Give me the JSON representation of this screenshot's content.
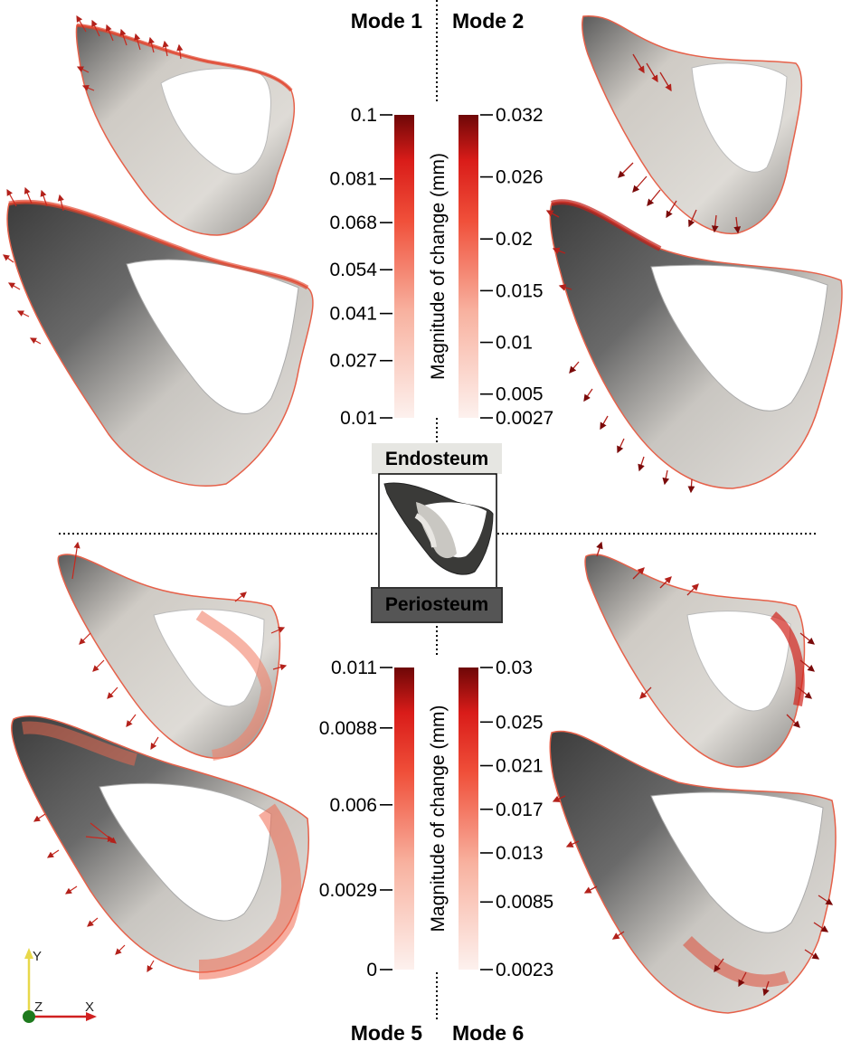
{
  "modes": {
    "top_left": "Mode 1",
    "top_right": "Mode 2",
    "bottom_left": "Mode 5",
    "bottom_right": "Mode 6"
  },
  "legend": {
    "endosteum": "Endosteum",
    "periosteum": "Periosteum"
  },
  "axes_triad": {
    "y": "Y",
    "z": "Z",
    "x": "X"
  },
  "colorbars": [
    {
      "id": "mode1",
      "title": "Magnitude of change (mm)",
      "range": [
        0.01,
        0.1
      ],
      "ticks": [
        "0.1",
        "0.081",
        "0.068",
        "0.054",
        "0.041",
        "0.027",
        "0.01"
      ],
      "tick_values": [
        0.1,
        0.081,
        0.068,
        0.054,
        0.041,
        0.027,
        0.01
      ]
    },
    {
      "id": "mode2",
      "title": "",
      "range": [
        0.0027,
        0.032
      ],
      "ticks": [
        "0.032",
        "0.026",
        "0.02",
        "0.015",
        "0.01",
        "0.005",
        "0.0027"
      ],
      "tick_values": [
        0.032,
        0.026,
        0.02,
        0.015,
        0.01,
        0.005,
        0.0027
      ]
    },
    {
      "id": "mode5",
      "title": "Magnitude of change (mm)",
      "range": [
        0,
        0.011
      ],
      "ticks": [
        "0.011",
        "0.0088",
        "0.006",
        "0.0029",
        "0"
      ],
      "tick_values": [
        0.011,
        0.0088,
        0.006,
        0.0029,
        0
      ]
    },
    {
      "id": "mode6",
      "title": "",
      "range": [
        0.0023,
        0.03
      ],
      "ticks": [
        "0.03",
        "0.025",
        "0.021",
        "0.017",
        "0.013",
        "0.0085",
        "0.0023"
      ],
      "tick_values": [
        0.03,
        0.025,
        0.021,
        0.017,
        0.013,
        0.0085,
        0.0023
      ]
    }
  ],
  "colors": {
    "bar_high": "#7a0a0a",
    "bar_mid_high": "#e0241d",
    "bar_mid": "#f47a5c",
    "bar_low": "#fdeee9",
    "bone_light": "#d9d6d0",
    "bone_dark": "#4a4a4a",
    "arrow": "#c8281e",
    "endosteum_bg": "#e6e6e2",
    "periosteum_bg": "#6d6d6d"
  }
}
